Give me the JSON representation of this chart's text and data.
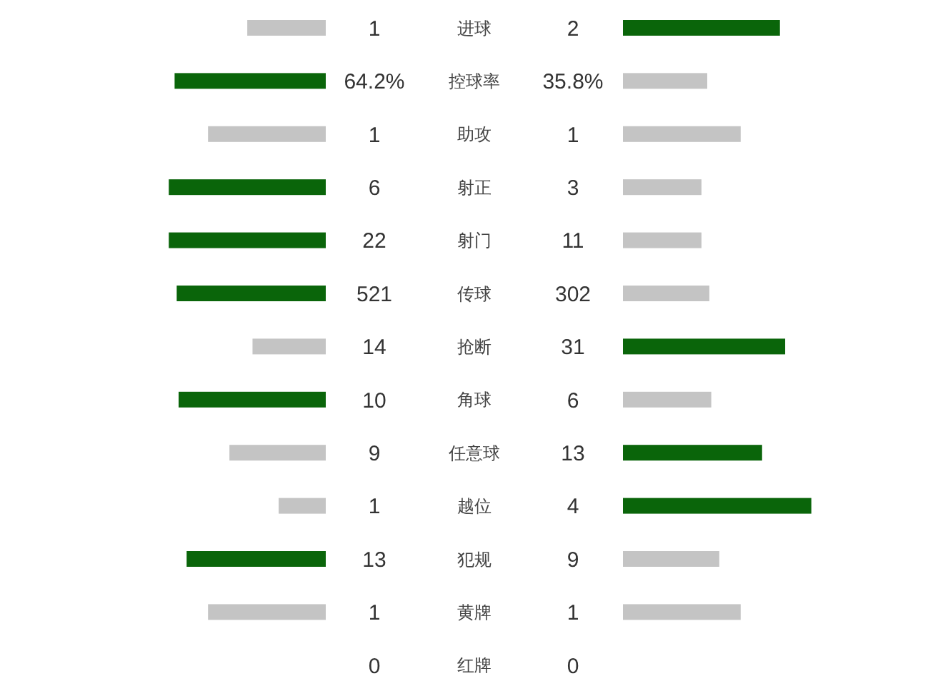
{
  "chart_data": [
    {
      "type": "bar",
      "orientation": "horizontal",
      "categories": [
        "进球"
      ],
      "values": [
        1
      ],
      "color": "#c4c4c4",
      "data_labels": true
    },
    {
      "type": "bar",
      "orientation": "horizontal",
      "categories": [
        "进球"
      ],
      "values": [
        2
      ],
      "color": "#0a650a",
      "data_labels": true,
      "tick_labels": false
    },
    {
      "type": "bar",
      "orientation": "horizontal",
      "categories": [
        "控球率"
      ],
      "values": [
        64.2
      ],
      "color": "#0a650a",
      "value_labels": [
        "64.2%"
      ]
    },
    {
      "type": "bar",
      "orientation": "horizontal",
      "categories": [
        "控球率"
      ],
      "values": [
        35.8
      ],
      "color": "#c4c4c4",
      "value_labels": [
        "35.8%"
      ],
      "tick_labels": false
    },
    {
      "type": "bar",
      "orientation": "horizontal",
      "categories": [
        "助攻"
      ],
      "values": [
        1
      ],
      "color": "#c4c4c4",
      "data_labels": true
    },
    {
      "type": "bar",
      "orientation": "horizontal",
      "categories": [
        "助攻"
      ],
      "values": [
        1
      ],
      "color": "#c4c4c4",
      "data_labels": true,
      "tick_labels": false
    },
    {
      "type": "bar",
      "orientation": "horizontal",
      "categories": [
        "射正"
      ],
      "values": [
        6
      ],
      "color": "#0a650a",
      "data_labels": true
    },
    {
      "type": "bar",
      "orientation": "horizontal",
      "categories": [
        "射正"
      ],
      "values": [
        3
      ],
      "color": "#c4c4c4",
      "data_labels": true,
      "tick_labels": false
    },
    {
      "type": "bar",
      "orientation": "horizontal",
      "categories": [
        "射门"
      ],
      "values": [
        22
      ],
      "color": "#0a650a",
      "data_labels": true
    },
    {
      "type": "bar",
      "orientation": "horizontal",
      "categories": [
        "射门"
      ],
      "values": [
        11
      ],
      "color": "#c4c4c4",
      "data_labels": true,
      "tick_labels": false
    },
    {
      "type": "bar",
      "orientation": "horizontal",
      "categories": [
        "传球"
      ],
      "values": [
        521
      ],
      "color": "#0a650a",
      "data_labels": true
    },
    {
      "type": "bar",
      "orientation": "horizontal",
      "categories": [
        "传球"
      ],
      "values": [
        302
      ],
      "color": "#c4c4c4",
      "data_labels": true,
      "tick_labels": false
    },
    {
      "type": "bar",
      "orientation": "horizontal",
      "categories": [
        "抢断"
      ],
      "values": [
        14
      ],
      "color": "#c4c4c4",
      "data_labels": true
    },
    {
      "type": "bar",
      "orientation": "horizontal",
      "categories": [
        "抢断"
      ],
      "values": [
        31
      ],
      "color": "#0a650a",
      "data_labels": true,
      "tick_labels": false
    },
    {
      "type": "bar",
      "orientation": "horizontal",
      "categories": [
        "角球"
      ],
      "values": [
        10
      ],
      "color": "#0a650a",
      "data_labels": true
    },
    {
      "type": "bar",
      "orientation": "horizontal",
      "categories": [
        "角球"
      ],
      "values": [
        6
      ],
      "color": "#c4c4c4",
      "data_labels": true,
      "tick_labels": false
    },
    {
      "type": "bar",
      "orientation": "horizontal",
      "categories": [
        "任意球"
      ],
      "values": [
        9
      ],
      "color": "#c4c4c4",
      "data_labels": true
    },
    {
      "type": "bar",
      "orientation": "horizontal",
      "categories": [
        "任意球"
      ],
      "values": [
        13
      ],
      "color": "#0a650a",
      "data_labels": true,
      "tick_labels": false
    },
    {
      "type": "bar",
      "orientation": "horizontal",
      "categories": [
        "越位"
      ],
      "values": [
        1
      ],
      "color": "#c4c4c4",
      "data_labels": true
    },
    {
      "type": "bar",
      "orientation": "horizontal",
      "categories": [
        "越位"
      ],
      "values": [
        4
      ],
      "color": "#0a650a",
      "data_labels": true,
      "tick_labels": false
    },
    {
      "type": "bar",
      "orientation": "horizontal",
      "categories": [
        "犯规"
      ],
      "values": [
        13
      ],
      "color": "#0a650a",
      "data_labels": true
    },
    {
      "type": "bar",
      "orientation": "horizontal",
      "categories": [
        "犯规"
      ],
      "values": [
        9
      ],
      "color": "#c4c4c4",
      "data_labels": true,
      "tick_labels": false
    },
    {
      "type": "bar",
      "orientation": "horizontal",
      "categories": [
        "黄牌"
      ],
      "values": [
        1
      ],
      "color": "#c4c4c4",
      "data_labels": true
    },
    {
      "type": "bar",
      "orientation": "horizontal",
      "categories": [
        "黄牌"
      ],
      "values": [
        1
      ],
      "color": "#c4c4c4",
      "data_labels": true,
      "tick_labels": false
    },
    {
      "type": "other",
      "categories": [
        "红牌"
      ],
      "data_labels": true,
      "series": [
        {
          "values": [
            0
          ]
        },
        {
          "values": [
            0
          ]
        }
      ]
    }
  ]
}
